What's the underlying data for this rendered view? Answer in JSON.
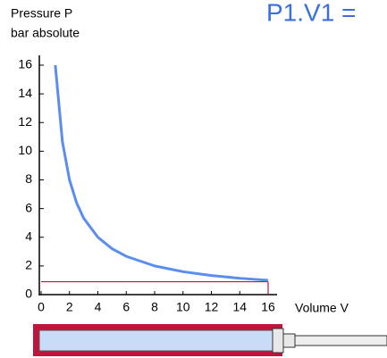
{
  "chart_data": {
    "type": "line",
    "title": "P1.V1 =",
    "y_label_lines": [
      "Pressure P",
      "bar absolute"
    ],
    "x_label": "Volume V",
    "x": [
      1,
      1.5,
      2,
      2.5,
      3,
      4,
      5,
      6,
      8,
      10,
      12,
      14,
      16
    ],
    "series": [
      {
        "color": "#5b8def",
        "values": [
          16,
          10.67,
          8,
          6.4,
          5.33,
          4,
          3.2,
          2.67,
          2,
          1.6,
          1.33,
          1.14,
          1
        ]
      }
    ],
    "reference": {
      "color": "#c0143c",
      "x": [
        0,
        16
      ],
      "values": [
        0.9,
        0.9
      ]
    },
    "xlim": [
      0,
      16
    ],
    "ylim": [
      0,
      16
    ],
    "xticks": [
      0,
      2,
      4,
      6,
      8,
      10,
      12,
      14,
      16
    ],
    "yticks": [
      0,
      2,
      4,
      6,
      8,
      10,
      12,
      14,
      16
    ]
  }
}
